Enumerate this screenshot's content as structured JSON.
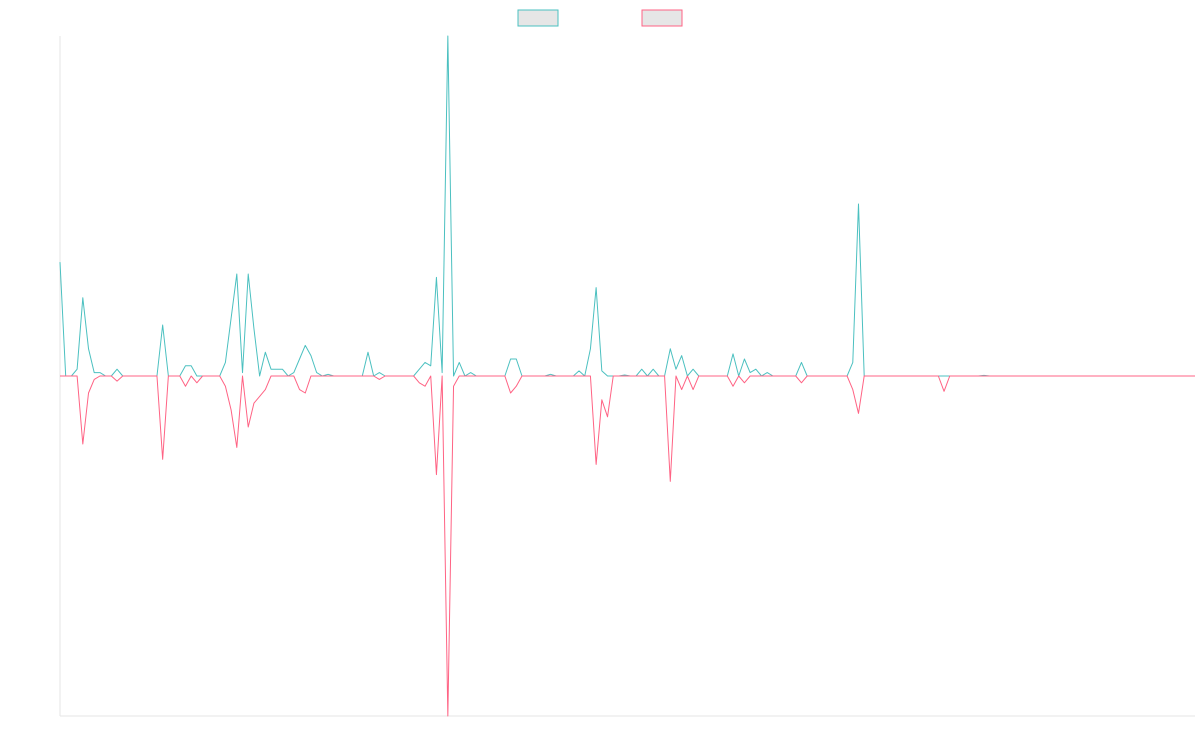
{
  "chart_data": {
    "type": "line",
    "ylim": [
      -100,
      100
    ],
    "legend": "top",
    "series": [
      {
        "color": "#4bc0c0",
        "values": [
          33.5,
          0,
          0,
          2,
          23,
          8,
          1,
          1,
          0,
          0,
          2,
          0,
          0,
          0,
          0,
          0,
          0,
          0,
          15,
          0,
          0,
          0,
          3,
          3,
          0,
          0,
          0,
          0,
          0,
          4,
          17,
          30,
          1,
          30,
          14,
          0,
          7,
          2,
          2,
          2,
          0,
          1,
          5,
          9,
          6,
          1,
          0,
          0.5,
          0,
          0,
          0,
          0,
          0,
          0,
          7,
          0,
          1,
          0,
          0,
          0,
          0,
          0,
          0,
          2,
          4,
          3,
          29,
          1,
          100,
          0,
          4,
          0,
          1,
          0,
          0,
          0,
          0,
          0,
          0,
          5,
          5,
          0,
          0,
          0,
          0,
          0,
          0.5,
          0,
          0,
          0,
          0,
          1.5,
          0,
          8,
          26,
          1.5,
          0,
          0,
          0,
          0.3,
          0,
          0,
          2,
          0,
          2,
          0,
          0,
          8,
          2,
          6,
          0,
          2,
          0,
          0,
          0,
          0,
          0,
          0,
          6.5,
          0,
          5,
          1,
          2,
          0,
          1,
          0,
          0,
          0,
          0,
          0,
          4,
          0,
          0,
          0,
          0,
          0,
          0,
          0,
          0,
          4,
          50.6,
          0,
          0,
          0,
          0,
          0,
          0,
          0,
          0,
          0,
          0,
          0,
          0,
          0,
          0,
          0,
          0,
          0,
          0,
          0,
          0,
          0,
          0.2,
          0,
          0,
          0,
          0,
          0,
          0,
          0,
          0,
          0,
          0,
          0,
          0,
          0,
          0,
          0,
          0,
          0,
          0,
          0,
          0,
          0,
          0,
          0,
          0,
          0,
          0,
          0,
          0,
          0,
          0,
          0,
          0,
          0,
          0,
          0,
          0,
          0
        ]
      },
      {
        "color": "#ff6384",
        "values": [
          0,
          0,
          0,
          0,
          -20,
          -5,
          -1,
          0,
          0,
          0,
          -1.5,
          0,
          0,
          0,
          0,
          0,
          0,
          0,
          -24.5,
          0,
          0,
          0,
          -3,
          0,
          -2,
          0,
          0,
          0,
          0,
          -3,
          -10,
          -21,
          0,
          -15,
          -8,
          -6,
          -4,
          0,
          0,
          0,
          0,
          0,
          -4,
          -5,
          0,
          0,
          0,
          0,
          0,
          0,
          0,
          0,
          0,
          0,
          0,
          0,
          -1,
          0,
          0,
          0,
          0,
          0,
          0,
          -2,
          -3,
          0,
          -29,
          0,
          -100,
          -3,
          0,
          0,
          0,
          0,
          0,
          0,
          0,
          0,
          0,
          -5,
          -3,
          0,
          0,
          0,
          0,
          0,
          0,
          0,
          0,
          0,
          0,
          0,
          0,
          0,
          -26,
          -7,
          -12,
          0,
          0,
          0,
          0,
          0,
          0,
          0,
          0,
          0,
          0,
          -31,
          0,
          -4,
          0,
          -4,
          0,
          0,
          0,
          0,
          0,
          0,
          -3,
          0,
          -2,
          0,
          0,
          0,
          0,
          0,
          0,
          0,
          0,
          0,
          -2,
          0,
          0,
          0,
          0,
          0,
          0,
          0,
          0,
          -4,
          -11,
          0,
          0,
          0,
          0,
          0,
          0,
          0,
          0,
          0,
          0,
          0,
          0,
          0,
          0,
          -4.5,
          0,
          0,
          0,
          0,
          0,
          0,
          0,
          0,
          0,
          0,
          0,
          0,
          0,
          0,
          0,
          0,
          0,
          0,
          0,
          0,
          0,
          0,
          0,
          0,
          0,
          0,
          0,
          0,
          0,
          0,
          0,
          0,
          0,
          0,
          0,
          0,
          0,
          0,
          0,
          0,
          0,
          0,
          0,
          0
        ]
      }
    ]
  }
}
